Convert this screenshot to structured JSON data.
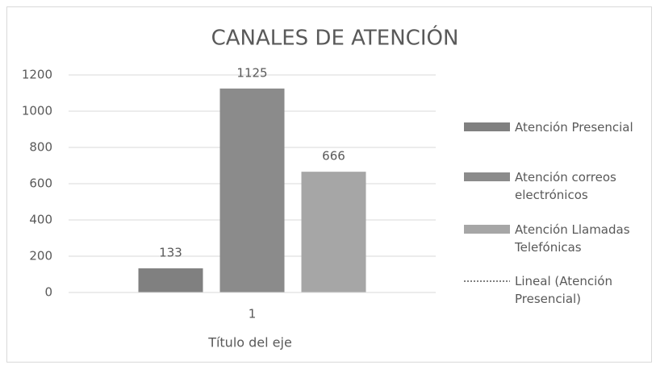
{
  "chart_data": {
    "type": "bar",
    "title": "CANALES DE ATENCIÓN",
    "x_label": "Título del eje",
    "categories": [
      "1"
    ],
    "series": [
      {
        "name": "Atención Presencial",
        "color": "#808080",
        "values": [
          133
        ]
      },
      {
        "name": "Atención correos electrónicos",
        "color": "#8b8b8b",
        "values": [
          1125
        ]
      },
      {
        "name": "Atención Llamadas Telefónicas",
        "color": "#a6a6a6",
        "values": [
          666
        ]
      }
    ],
    "trendlines": [
      {
        "name": "Lineal (Atención Presencial)",
        "color": "#808080",
        "style": "dotted"
      }
    ],
    "ylim": [
      0,
      1200
    ],
    "yticks": [
      0,
      200,
      400,
      600,
      800,
      1000,
      1200
    ],
    "grid": true,
    "legend": "right"
  }
}
